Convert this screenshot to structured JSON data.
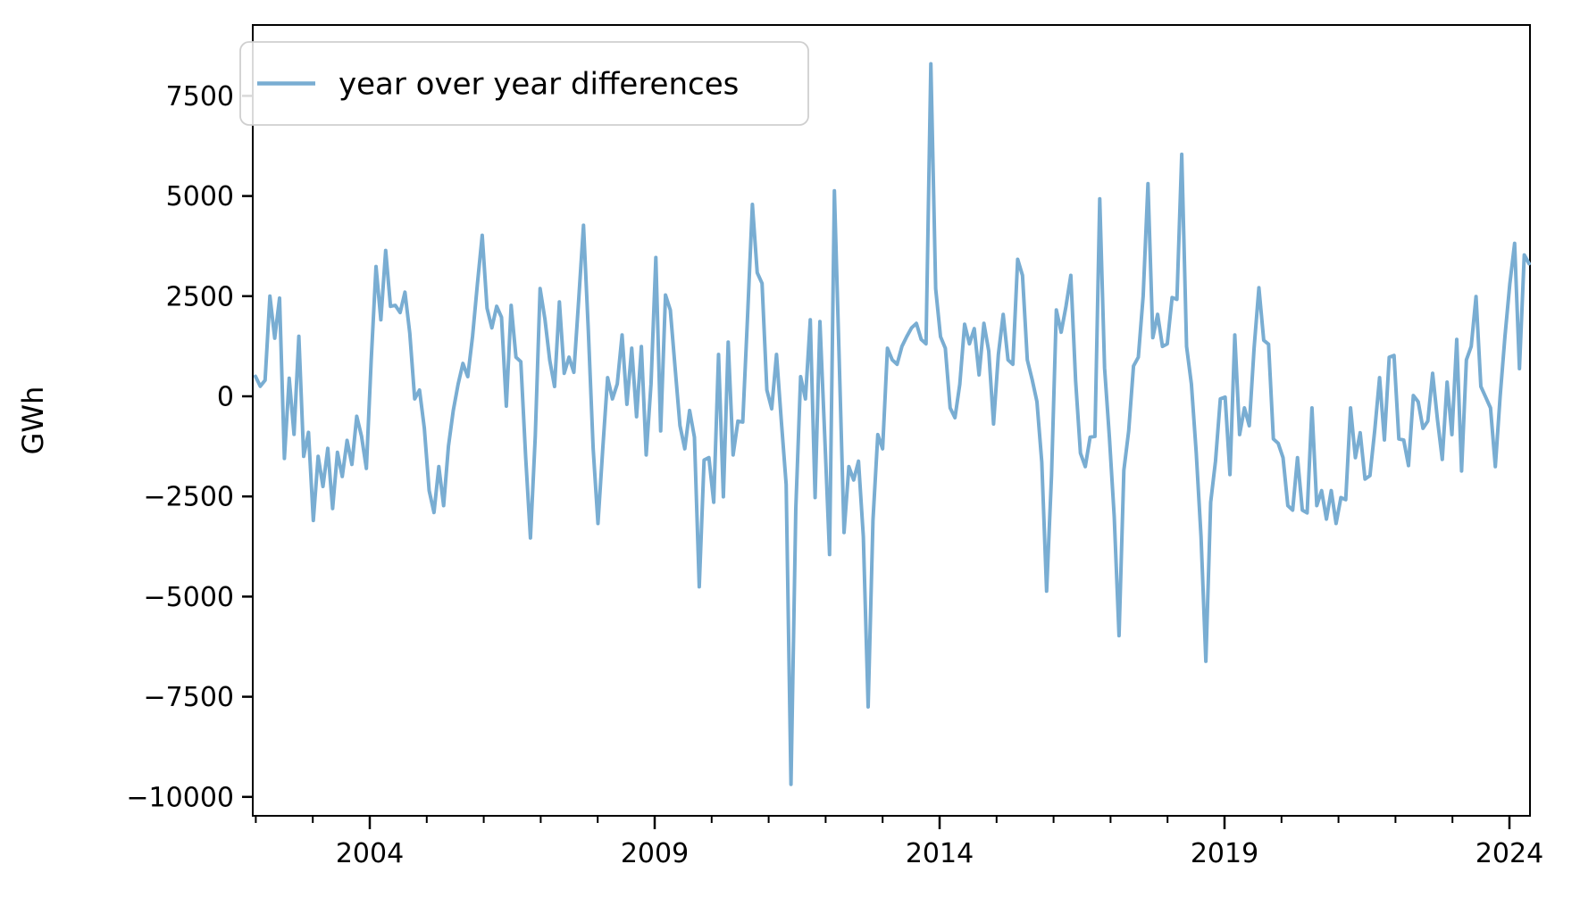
{
  "legend": {
    "label": "year over year differences"
  },
  "axes": {
    "ylabel": "GWh",
    "ytick_labels": [
      "7500",
      "5000",
      "2500",
      "0",
      "−2500",
      "−5000",
      "−7500",
      "−10000"
    ],
    "ytick_values": [
      7500,
      5000,
      2500,
      0,
      -2500,
      -5000,
      -7500,
      -10000
    ],
    "xtick_labels": [
      "2004",
      "2009",
      "2014",
      "2019",
      "2024"
    ],
    "xtick_values": [
      2004,
      2009,
      2014,
      2019,
      2024
    ],
    "minor_xtick_years": [
      2002,
      2003,
      2005,
      2006,
      2007,
      2008,
      2010,
      2011,
      2012,
      2013,
      2015,
      2016,
      2017,
      2018,
      2020,
      2021,
      2022,
      2023
    ]
  },
  "style": {
    "line_color": "#79add2",
    "spine_color": "#000000",
    "legend_border": "#cfcfcf"
  },
  "chart_data": {
    "type": "line",
    "title": "",
    "xlabel": "",
    "ylabel": "GWh",
    "x_start": "2002-01",
    "x_end": "2024-01",
    "x_interval": "monthly",
    "xlim": [
      2001.95,
      2024.36
    ],
    "ylim": [
      -10550,
      9250
    ],
    "grid": false,
    "legend_position": "upper left",
    "series": [
      {
        "name": "year over year differences",
        "color": "#79add2",
        "values": [
          500,
          250,
          400,
          2500,
          1450,
          2450,
          -1550,
          450,
          -950,
          1500,
          -1500,
          -900,
          -3100,
          -1500,
          -2250,
          -1300,
          -2800,
          -1400,
          -2000,
          -1100,
          -1700,
          -500,
          -1000,
          -1800,
          900,
          3240,
          1910,
          3640,
          2245,
          2270,
          2090,
          2600,
          1575,
          -65,
          155,
          -800,
          -2355,
          -2900,
          -1755,
          -2730,
          -1245,
          -355,
          300,
          820,
          490,
          1500,
          2800,
          4020,
          2200,
          1710,
          2245,
          1975,
          -245,
          2270,
          975,
          865,
          -1500,
          -3535,
          -1000,
          2690,
          1930,
          900,
          245,
          2355,
          575,
          975,
          600,
          2400,
          4270,
          1640,
          -1300,
          -3175,
          -1300,
          465,
          -65,
          310,
          1530,
          -200,
          1200,
          -510,
          1240,
          -1465,
          310,
          3465,
          -865,
          2530,
          2155,
          700,
          -730,
          -1310,
          -355,
          -1020,
          -4755,
          -1590,
          -1530,
          -2645,
          1045,
          -2510,
          1355,
          -1465,
          -620,
          -645,
          2000,
          4790,
          3085,
          2820,
          155,
          -310,
          1045,
          -620,
          -2200,
          -9685,
          -2800,
          490,
          -65,
          1910,
          -2530,
          1865,
          -1000,
          -3950,
          5130,
          910,
          -3400,
          -1755,
          -2090,
          -1620,
          -3500,
          -7755,
          -3090,
          -955,
          -1310,
          1200,
          910,
          800,
          1245,
          1490,
          1710,
          1820,
          1420,
          1310,
          8300,
          2685,
          1490,
          1200,
          -290,
          -535,
          300,
          1800,
          1310,
          1690,
          535,
          1820,
          1130,
          -690,
          1045,
          2045,
          910,
          800,
          3420,
          3020,
          910,
          420,
          -135,
          -1645,
          -4865,
          -1980,
          2155,
          1600,
          2245,
          3020,
          380,
          -1420,
          -1755,
          -1020,
          -1000,
          4930,
          710,
          -1020,
          -3000,
          -5975,
          -1845,
          -865,
          755,
          975,
          2500,
          5310,
          1465,
          2045,
          1245,
          1310,
          2465,
          2420,
          6040,
          1245,
          310,
          -1400,
          -3500,
          -6615,
          -2645,
          -1620,
          -65,
          -20,
          -1955,
          1530,
          -955,
          -290,
          -735,
          1200,
          2710,
          1400,
          1300,
          -1065,
          -1175,
          -1530,
          -2730,
          -2840,
          -1530,
          -2840,
          -2910,
          -290,
          -2730,
          -2355,
          -3065,
          -2355,
          -3175,
          -2530,
          -2580,
          -290,
          -1530,
          -910,
          -2065,
          -1980,
          -845,
          465,
          -1090,
          975,
          1020,
          -1065,
          -1090,
          -1730,
          20,
          -135,
          -800,
          -620,
          575,
          -580,
          -1575,
          355,
          -955,
          1420,
          -1865,
          910,
          1245,
          2490,
          245,
          -20,
          -290,
          -1755,
          0,
          1500,
          2800,
          3820,
          690,
          3530,
          3310
        ]
      }
    ]
  }
}
